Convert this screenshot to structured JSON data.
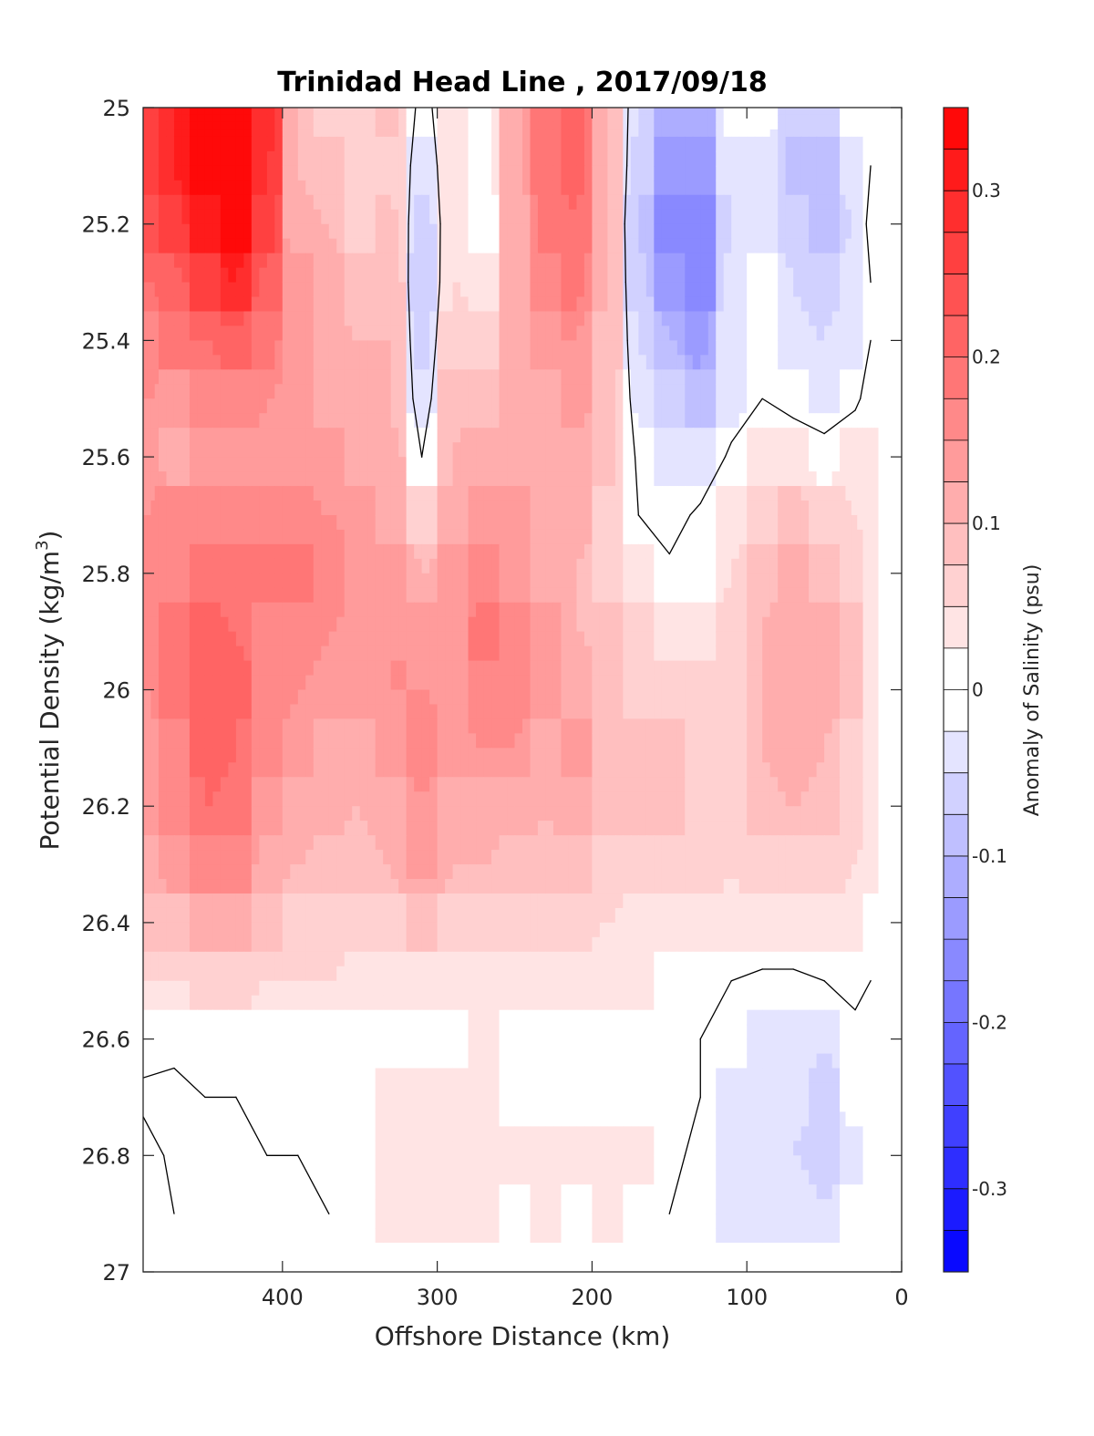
{
  "chart_data": {
    "type": "heatmap",
    "title": "Trinidad Head Line , 2017/09/18",
    "xlabel": "Offshore Distance (km)",
    "ylabel": "Potential Density (kg/m",
    "ylabel_sup": "3",
    "ylabel_close": ")",
    "colorbar_label": "Anomaly of Salinity (psu)",
    "xlim": [
      490,
      0
    ],
    "ylim": [
      25,
      27
    ],
    "x_reversed": true,
    "y_reversed": true,
    "x_ticks": [
      {
        "value": 400,
        "label": "400"
      },
      {
        "value": 300,
        "label": "300"
      },
      {
        "value": 200,
        "label": "200"
      },
      {
        "value": 100,
        "label": "100"
      },
      {
        "value": 0,
        "label": "0"
      }
    ],
    "y_ticks": [
      {
        "value": 25.0,
        "label": "25"
      },
      {
        "value": 25.2,
        "label": "25.2"
      },
      {
        "value": 25.4,
        "label": "25.4"
      },
      {
        "value": 25.6,
        "label": "25.6"
      },
      {
        "value": 25.8,
        "label": "25.8"
      },
      {
        "value": 26.0,
        "label": "26"
      },
      {
        "value": 26.2,
        "label": "26.2"
      },
      {
        "value": 26.4,
        "label": "26.4"
      },
      {
        "value": 26.6,
        "label": "26.6"
      },
      {
        "value": 26.8,
        "label": "26.8"
      },
      {
        "value": 27.0,
        "label": "27"
      }
    ],
    "colorbar": {
      "range": [
        -0.35,
        0.35
      ],
      "levels": [
        -0.35,
        -0.325,
        -0.3,
        -0.275,
        -0.25,
        -0.225,
        -0.2,
        -0.175,
        -0.15,
        -0.125,
        -0.1,
        -0.075,
        -0.05,
        -0.025,
        0,
        0.025,
        0.05,
        0.075,
        0.1,
        0.125,
        0.15,
        0.175,
        0.2,
        0.225,
        0.25,
        0.275,
        0.3,
        0.325,
        0.35
      ],
      "ticks": [
        {
          "value": 0.3,
          "label": "0.3"
        },
        {
          "value": 0.2,
          "label": "0.2"
        },
        {
          "value": 0.1,
          "label": "0.1"
        },
        {
          "value": 0,
          "label": "0"
        },
        {
          "value": -0.1,
          "label": "-0.1"
        },
        {
          "value": -0.2,
          "label": "-0.2"
        },
        {
          "value": -0.3,
          "label": "-0.3"
        }
      ],
      "low_color": "#0000ff",
      "mid_color": "#ffffff",
      "high_color": "#ff0000"
    },
    "x_grid": [
      490,
      470,
      450,
      430,
      410,
      390,
      370,
      350,
      330,
      310,
      290,
      270,
      250,
      230,
      210,
      190,
      170,
      150,
      130,
      110,
      90,
      70,
      50,
      30,
      20
    ],
    "y_grid": [
      25.0,
      25.1,
      25.2,
      25.3,
      25.4,
      25.5,
      25.6,
      25.7,
      25.8,
      25.9,
      26.0,
      26.1,
      26.2,
      26.3,
      26.4,
      26.5,
      26.6,
      26.7,
      26.8,
      26.9
    ],
    "values": [
      [
        0.27,
        0.3,
        0.35,
        0.34,
        0.29,
        0.1,
        0.07,
        0.07,
        0.08,
        -0.02,
        0.04,
        0.02,
        0.12,
        0.19,
        0.21,
        0.1,
        -0.05,
        -0.12,
        -0.11,
        -0.02,
        -0.02,
        -0.07,
        -0.06,
        -0.01,
        0.0
      ],
      [
        0.26,
        0.3,
        0.35,
        0.34,
        0.28,
        0.1,
        0.08,
        0.06,
        0.07,
        -0.04,
        0.04,
        0.02,
        0.12,
        0.19,
        0.21,
        0.1,
        -0.06,
        -0.14,
        -0.14,
        -0.03,
        -0.03,
        -0.08,
        -0.09,
        -0.04,
        0.0
      ],
      [
        0.23,
        0.27,
        0.32,
        0.34,
        0.26,
        0.11,
        0.1,
        0.07,
        0.08,
        -0.06,
        0.04,
        0.01,
        0.11,
        0.18,
        0.2,
        0.1,
        -0.08,
        -0.16,
        -0.17,
        -0.05,
        -0.03,
        -0.07,
        -0.08,
        -0.05,
        0.02
      ],
      [
        0.2,
        0.22,
        0.26,
        0.3,
        0.22,
        0.13,
        0.11,
        0.08,
        0.09,
        -0.07,
        0.05,
        0.03,
        0.11,
        0.17,
        0.18,
        0.1,
        -0.07,
        -0.14,
        -0.17,
        -0.04,
        -0.02,
        -0.05,
        -0.07,
        -0.04,
        0.0
      ],
      [
        0.17,
        0.18,
        0.2,
        0.22,
        0.18,
        0.13,
        0.11,
        0.1,
        0.1,
        -0.06,
        0.07,
        0.06,
        0.11,
        0.14,
        0.15,
        0.09,
        -0.05,
        -0.1,
        -0.13,
        -0.03,
        -0.02,
        -0.04,
        -0.05,
        -0.03,
        0.0
      ],
      [
        0.15,
        0.14,
        0.16,
        0.16,
        0.15,
        0.13,
        0.12,
        0.11,
        0.1,
        -0.04,
        0.09,
        0.09,
        0.11,
        0.12,
        0.13,
        0.08,
        -0.03,
        -0.06,
        -0.09,
        -0.03,
        0.0,
        -0.02,
        -0.03,
        -0.01,
        0.02
      ],
      [
        0.14,
        0.12,
        0.13,
        0.14,
        0.14,
        0.14,
        0.13,
        0.12,
        0.11,
        0.0,
        0.1,
        0.11,
        0.12,
        0.12,
        0.12,
        0.08,
        -0.01,
        -0.03,
        -0.04,
        0.01,
        0.03,
        0.04,
        0.02,
        0.04,
        0.04
      ],
      [
        0.15,
        0.16,
        0.16,
        0.17,
        0.17,
        0.16,
        0.15,
        0.13,
        0.12,
        0.06,
        0.11,
        0.13,
        0.13,
        0.12,
        0.11,
        0.07,
        0.0,
        -0.02,
        0.01,
        0.03,
        0.07,
        0.08,
        0.06,
        0.05,
        0.04
      ],
      [
        0.16,
        0.17,
        0.18,
        0.18,
        0.19,
        0.19,
        0.17,
        0.14,
        0.14,
        0.1,
        0.13,
        0.16,
        0.14,
        0.12,
        0.1,
        0.07,
        0.03,
        0.01,
        0.02,
        0.05,
        0.09,
        0.11,
        0.09,
        0.07,
        0.04
      ],
      [
        0.16,
        0.18,
        0.21,
        0.2,
        0.17,
        0.16,
        0.15,
        0.14,
        0.15,
        0.13,
        0.14,
        0.18,
        0.16,
        0.13,
        0.1,
        0.08,
        0.06,
        0.04,
        0.04,
        0.07,
        0.1,
        0.12,
        0.11,
        0.08,
        0.04
      ],
      [
        0.15,
        0.18,
        0.21,
        0.21,
        0.17,
        0.15,
        0.14,
        0.13,
        0.15,
        0.15,
        0.14,
        0.17,
        0.16,
        0.13,
        0.12,
        0.08,
        0.07,
        0.06,
        0.06,
        0.07,
        0.1,
        0.12,
        0.11,
        0.08,
        0.04
      ],
      [
        0.14,
        0.17,
        0.21,
        0.2,
        0.16,
        0.13,
        0.12,
        0.12,
        0.14,
        0.16,
        0.13,
        0.15,
        0.15,
        0.12,
        0.13,
        0.09,
        0.08,
        0.08,
        0.07,
        0.07,
        0.1,
        0.12,
        0.1,
        0.07,
        0.04
      ],
      [
        0.13,
        0.16,
        0.2,
        0.19,
        0.14,
        0.12,
        0.11,
        0.1,
        0.12,
        0.15,
        0.12,
        0.12,
        0.12,
        0.1,
        0.12,
        0.09,
        0.08,
        0.08,
        0.07,
        0.06,
        0.08,
        0.1,
        0.09,
        0.06,
        0.04
      ],
      [
        0.11,
        0.13,
        0.17,
        0.17,
        0.12,
        0.1,
        0.09,
        0.08,
        0.1,
        0.13,
        0.1,
        0.1,
        0.09,
        0.08,
        0.09,
        0.07,
        0.06,
        0.06,
        0.06,
        0.05,
        0.06,
        0.07,
        0.07,
        0.05,
        0.04
      ],
      [
        0.08,
        0.09,
        0.11,
        0.11,
        0.09,
        0.07,
        0.07,
        0.06,
        0.07,
        0.08,
        0.07,
        0.07,
        0.06,
        0.06,
        0.06,
        0.05,
        0.04,
        0.04,
        0.04,
        0.04,
        0.04,
        0.04,
        0.04,
        0.03,
        0.02
      ],
      [
        0.05,
        0.05,
        0.06,
        0.06,
        0.05,
        0.05,
        0.05,
        0.04,
        0.04,
        0.04,
        0.04,
        0.04,
        0.04,
        0.03,
        0.04,
        0.03,
        0.03,
        0.02,
        0.01,
        0.0,
        -0.01,
        -0.01,
        0.0,
        0.02,
        0.0
      ],
      [
        0.02,
        0.01,
        0.01,
        0.01,
        0.02,
        0.02,
        0.01,
        0.02,
        0.01,
        0.02,
        0.01,
        0.03,
        0.02,
        0.02,
        0.01,
        0.01,
        0.01,
        0.02,
        0.0,
        -0.02,
        -0.04,
        -0.03,
        -0.05,
        -0.02,
        0.0
      ],
      [
        -0.01,
        -0.01,
        0.0,
        0.0,
        0.01,
        0.01,
        0.01,
        0.02,
        0.03,
        0.04,
        0.03,
        0.03,
        0.02,
        0.02,
        0.01,
        0.01,
        0.02,
        0.02,
        0.0,
        -0.03,
        -0.05,
        -0.04,
        -0.07,
        -0.02,
        0.0
      ],
      [
        0.02,
        -0.01,
        -0.01,
        0.0,
        0.0,
        0.0,
        0.01,
        0.02,
        0.04,
        0.05,
        0.05,
        0.04,
        0.04,
        0.03,
        0.03,
        0.03,
        0.03,
        0.01,
        -0.01,
        -0.03,
        -0.05,
        -0.05,
        -0.07,
        -0.03,
        0.0
      ],
      [
        0.02,
        0.0,
        -0.02,
        0.0,
        0.0,
        0.0,
        0.0,
        0.02,
        0.03,
        0.04,
        0.03,
        0.03,
        0.02,
        0.03,
        0.02,
        0.03,
        0.02,
        0.0,
        -0.01,
        -0.03,
        -0.04,
        -0.03,
        -0.05,
        -0.02,
        0.0
      ]
    ]
  }
}
